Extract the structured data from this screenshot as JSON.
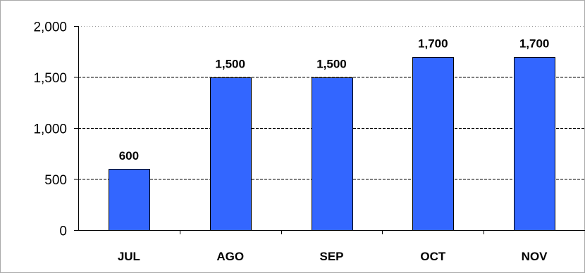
{
  "chart_data": {
    "type": "bar",
    "title": "",
    "xlabel": "",
    "ylabel": "",
    "categories": [
      "JUL",
      "AGO",
      "SEP",
      "OCT",
      "NOV"
    ],
    "values": [
      600,
      1500,
      1500,
      1700,
      1700
    ],
    "value_labels": [
      "600",
      "1,500",
      "1,500",
      "1,700",
      "1,700"
    ],
    "ylim": [
      0,
      2000
    ],
    "yticks": [
      0,
      500,
      1000,
      1500,
      2000
    ],
    "ytick_labels": [
      "0",
      "500",
      "1,000",
      "1,500",
      "2,000"
    ],
    "grid": "horizontal-dashed",
    "legend": "none",
    "colors": {
      "bar_fill": "#3366ff",
      "bar_stroke": "#000000",
      "grid": "#000000",
      "frame": "#a9a9a9"
    }
  }
}
